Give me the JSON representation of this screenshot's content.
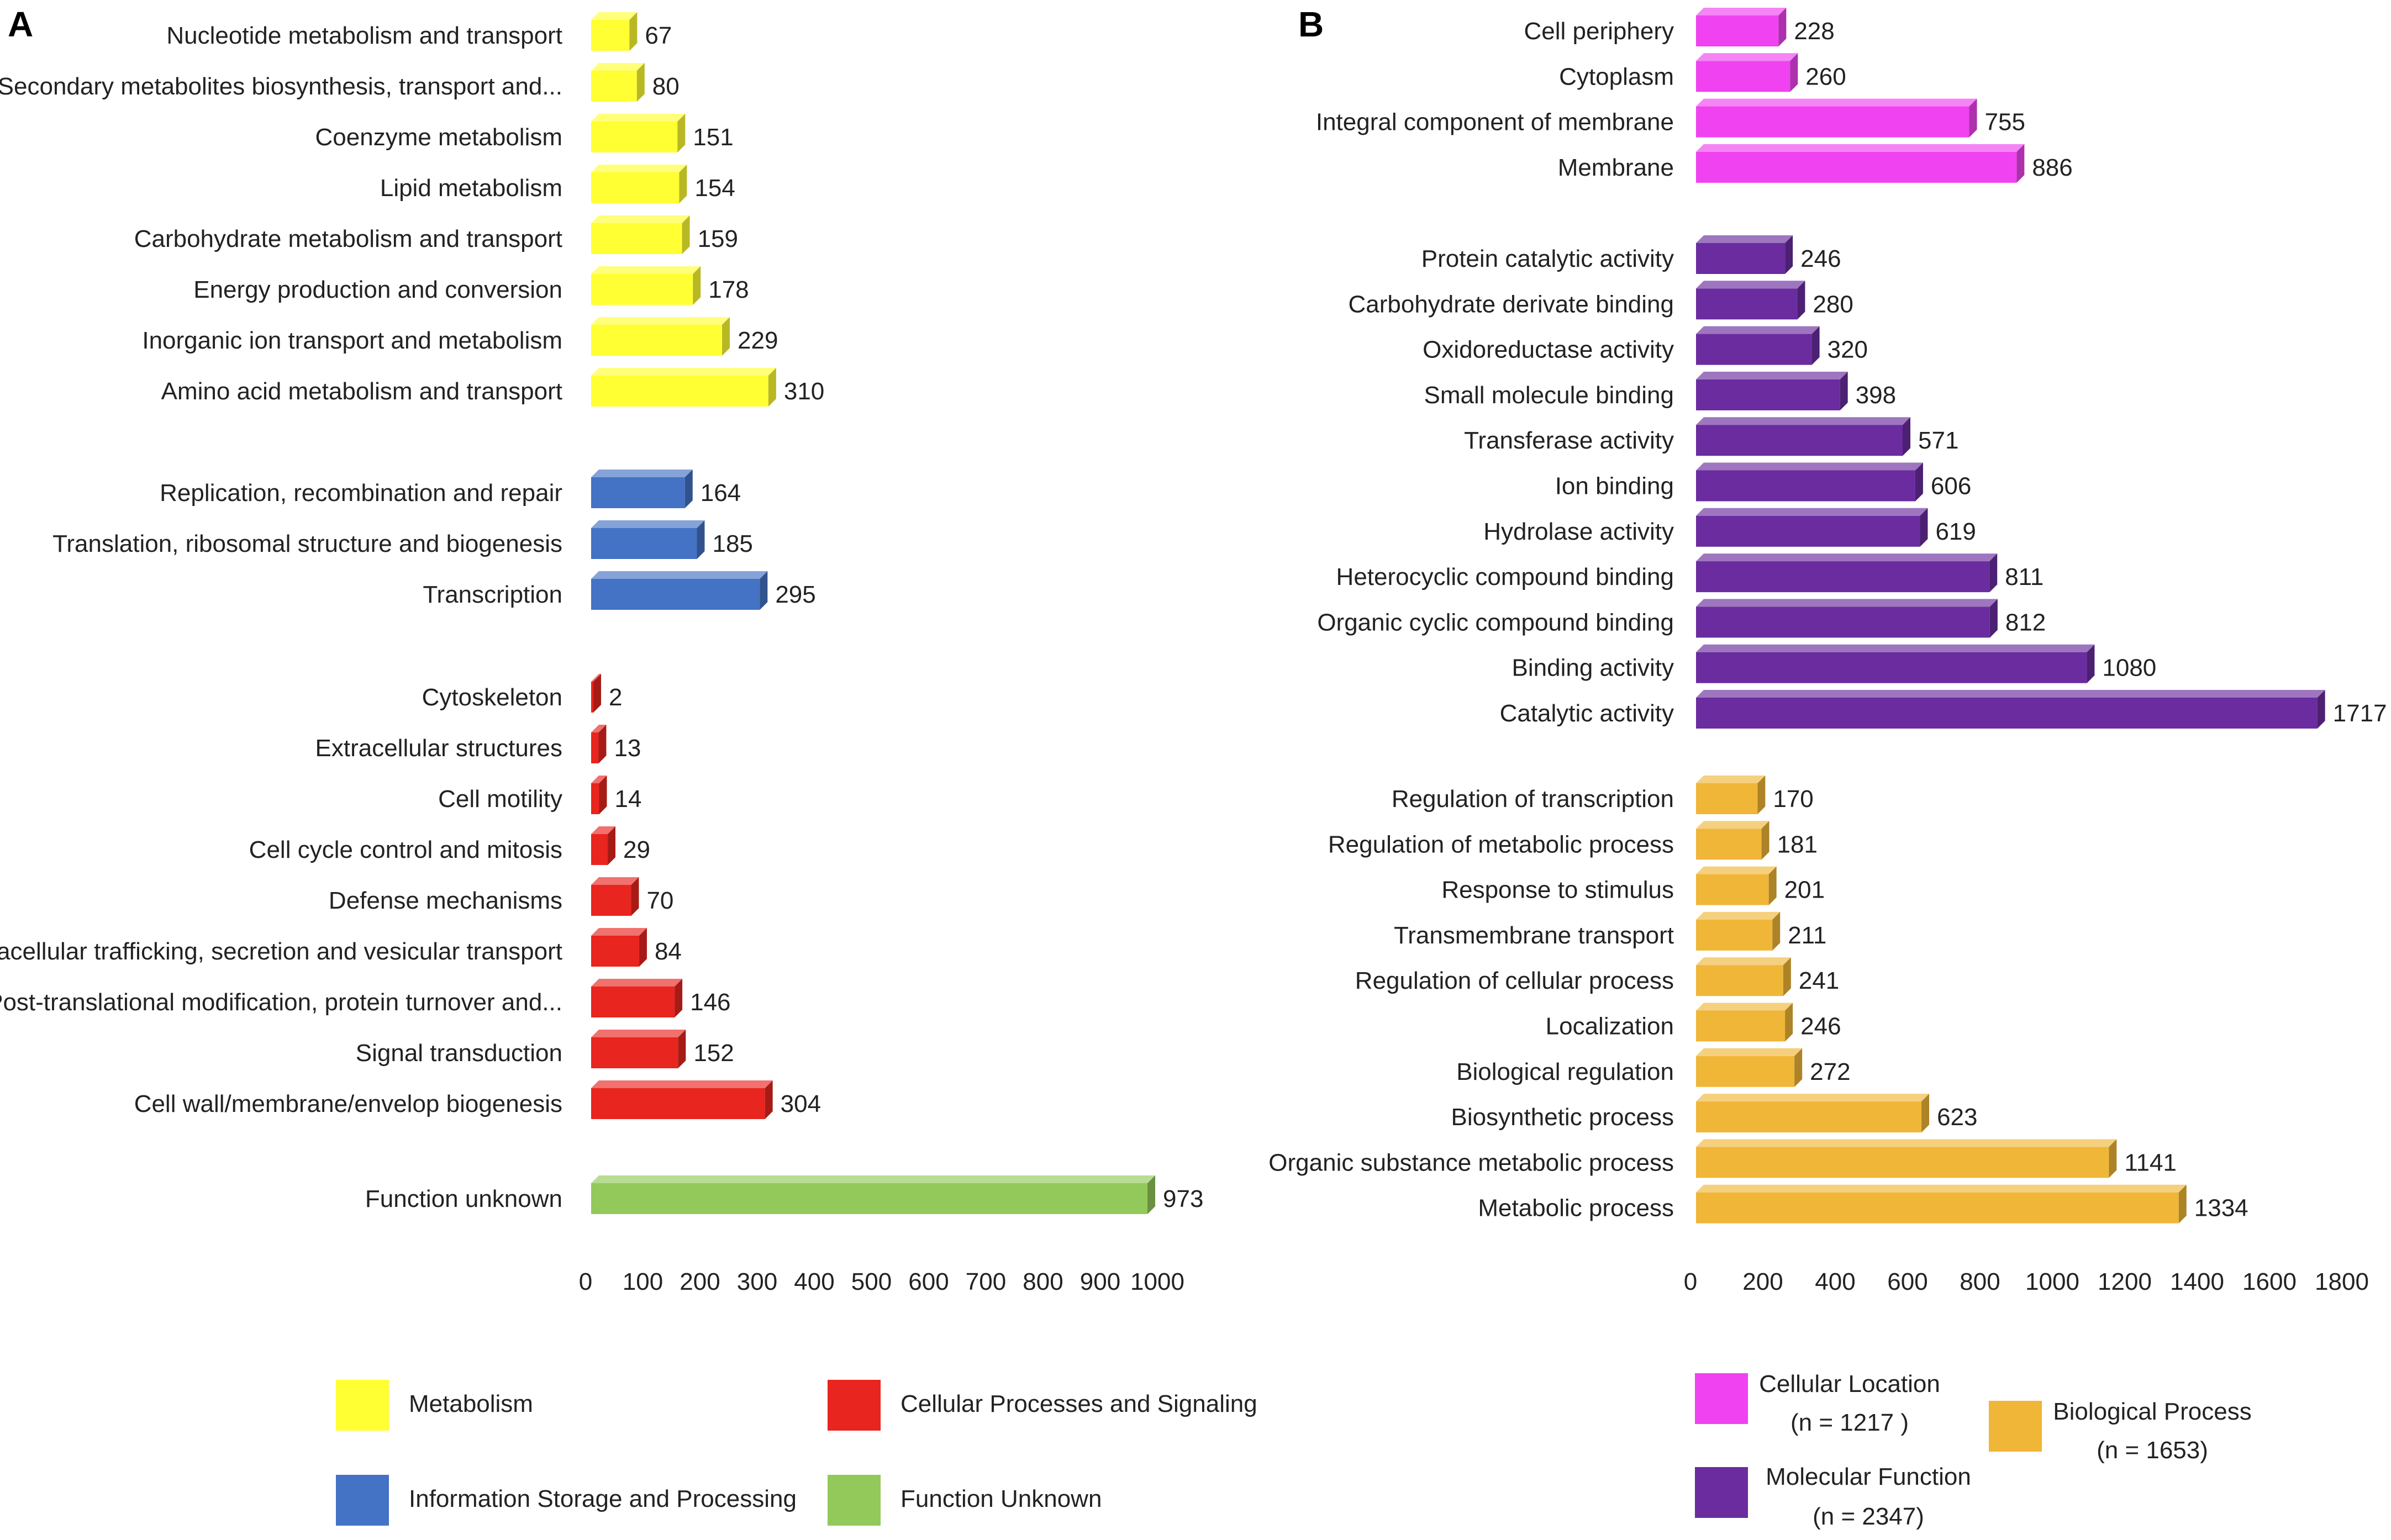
{
  "chart_data": [
    {
      "panel": "A",
      "type": "bar",
      "orientation": "horizontal",
      "xlim": [
        0,
        1000
      ],
      "xticks": [
        "0",
        "100",
        "200",
        "300",
        "400",
        "500",
        "600",
        "700",
        "800",
        "900",
        "1000"
      ],
      "groups": [
        {
          "legend": "Metabolism",
          "color": "#FFFF33",
          "categories": [
            "Nucleotide metabolism and transport",
            "Secondary metabolites biosynthesis, transport and...",
            "Coenzyme metabolism",
            "Lipid metabolism",
            "Carbohydrate metabolism and transport",
            "Energy production and conversion",
            "Inorganic ion transport and metabolism",
            "Amino acid metabolism and transport"
          ],
          "values": [
            67,
            80,
            151,
            154,
            159,
            178,
            229,
            310
          ]
        },
        {
          "legend": "Information Storage and Processing",
          "color": "#4472C4",
          "categories": [
            "Replication, recombination and repair",
            "Translation, ribosomal structure and biogenesis",
            "Transcription"
          ],
          "values": [
            164,
            185,
            295
          ]
        },
        {
          "legend": "Cellular Processes and Signaling",
          "color": "#E8251E",
          "categories": [
            "Cytoskeleton",
            "Extracellular structures",
            "Cell motility",
            "Cell cycle control and mitosis",
            "Defense mechanisms",
            "Intracellular trafficking, secretion and vesicular transport",
            "Post-translational modification, protein turnover and...",
            "Signal transduction",
            "Cell wall/membrane/envelop biogenesis"
          ],
          "values": [
            2,
            13,
            14,
            29,
            70,
            84,
            146,
            152,
            304
          ]
        },
        {
          "legend": "Function Unknown",
          "color": "#92C95A",
          "categories": [
            "Function unknown"
          ],
          "values": [
            973
          ]
        }
      ]
    },
    {
      "panel": "B",
      "type": "bar",
      "orientation": "horizontal",
      "xlim": [
        0,
        1800
      ],
      "xticks": [
        "0",
        "200",
        "400",
        "600",
        "800",
        "1000",
        "1200",
        "1400",
        "1600",
        "1800"
      ],
      "groups": [
        {
          "legend": "Cellular Location",
          "legend_n": "(n = 1217 )",
          "color": "#F042F0",
          "categories": [
            "Cell periphery",
            "Cytoplasm",
            "Integral component of membrane",
            "Membrane"
          ],
          "values": [
            228,
            260,
            755,
            886
          ]
        },
        {
          "legend": "Molecular Function",
          "legend_n": "(n = 2347)",
          "color": "#6A2C9E",
          "categories": [
            "Protein catalytic activity",
            "Carbohydrate derivate binding",
            "Oxidoreductase activity",
            "Small molecule binding",
            "Transferase activity",
            "Ion binding",
            "Hydrolase activity",
            "Heterocyclic compound binding",
            "Organic cyclic compound binding",
            "Binding activity",
            "Catalytic activity"
          ],
          "values": [
            246,
            280,
            320,
            398,
            571,
            606,
            619,
            811,
            812,
            1080,
            1717
          ]
        },
        {
          "legend": "Biological Process",
          "legend_n": "(n = 1653)",
          "color": "#F0B638",
          "categories": [
            "Regulation of transcription",
            "Regulation of metabolic process",
            "Response to stimulus",
            "Transmembrane transport",
            "Regulation of cellular process",
            "Localization",
            "Biological regulation",
            "Biosynthetic process",
            "Organic substance metabolic process",
            "Metabolic process"
          ],
          "values": [
            170,
            181,
            201,
            211,
            241,
            246,
            272,
            623,
            1141,
            1334
          ]
        }
      ]
    }
  ]
}
